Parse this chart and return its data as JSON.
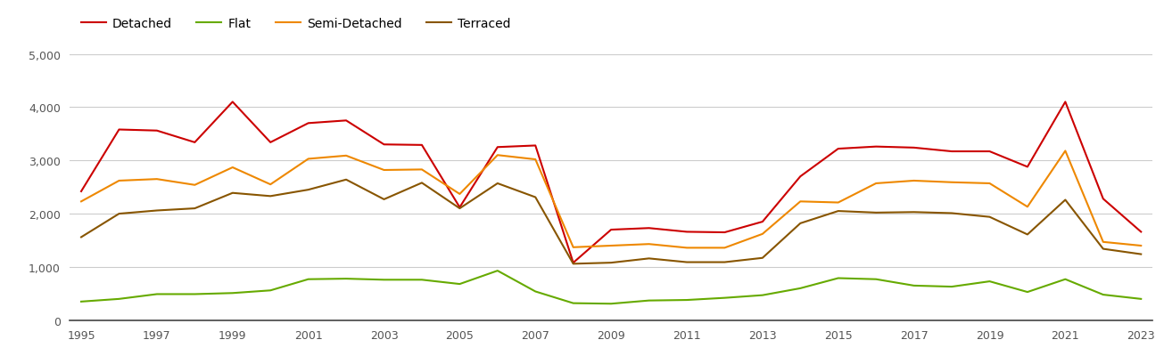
{
  "years": [
    1995,
    1996,
    1997,
    1998,
    1999,
    2000,
    2001,
    2002,
    2003,
    2004,
    2005,
    2006,
    2007,
    2008,
    2009,
    2010,
    2011,
    2012,
    2013,
    2014,
    2015,
    2016,
    2017,
    2018,
    2019,
    2020,
    2021,
    2022,
    2023
  ],
  "detached": [
    2420,
    3580,
    3560,
    3340,
    4100,
    3340,
    3700,
    3750,
    3300,
    3290,
    2120,
    3250,
    3280,
    1080,
    1700,
    1730,
    1660,
    1650,
    1850,
    2700,
    3220,
    3260,
    3240,
    3170,
    3170,
    2880,
    4100,
    2280,
    1660
  ],
  "flat": [
    350,
    400,
    490,
    490,
    510,
    560,
    770,
    780,
    760,
    760,
    680,
    930,
    540,
    320,
    310,
    370,
    380,
    420,
    470,
    600,
    790,
    770,
    650,
    630,
    730,
    530,
    770,
    480,
    400
  ],
  "semi_detached": [
    2230,
    2620,
    2650,
    2540,
    2870,
    2550,
    3030,
    3090,
    2820,
    2830,
    2370,
    3100,
    3020,
    1370,
    1400,
    1430,
    1360,
    1360,
    1620,
    2230,
    2210,
    2570,
    2620,
    2590,
    2570,
    2130,
    3180,
    1470,
    1400
  ],
  "terraced": [
    1560,
    2000,
    2060,
    2100,
    2390,
    2330,
    2450,
    2640,
    2270,
    2580,
    2100,
    2570,
    2310,
    1060,
    1080,
    1160,
    1090,
    1090,
    1170,
    1820,
    2050,
    2020,
    2030,
    2010,
    1940,
    1610,
    2260,
    1340,
    1240
  ],
  "colors": {
    "detached": "#cc0000",
    "flat": "#66aa00",
    "semi_detached": "#ee8800",
    "terraced": "#885500"
  },
  "ylim": [
    0,
    5000
  ],
  "yticks": [
    0,
    1000,
    2000,
    3000,
    4000,
    5000
  ],
  "xticks": [
    1995,
    1997,
    1999,
    2001,
    2003,
    2005,
    2007,
    2009,
    2011,
    2013,
    2015,
    2017,
    2019,
    2021,
    2023
  ],
  "background_color": "#ffffff",
  "grid_color": "#cccccc",
  "legend_labels": [
    "Detached",
    "Flat",
    "Semi-Detached",
    "Terraced"
  ]
}
